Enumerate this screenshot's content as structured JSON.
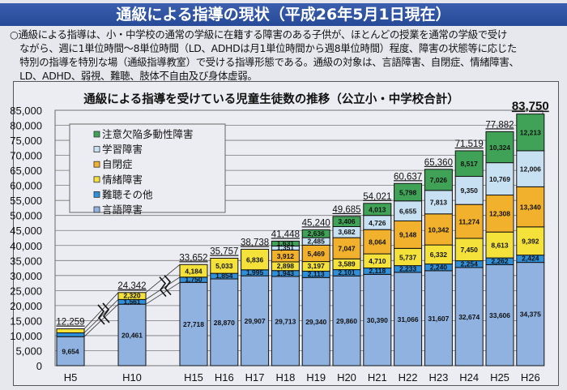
{
  "header": {
    "title": "通級による指導の現状（平成26年5月1日現在）"
  },
  "description": {
    "lines": [
      "○通級による指導は、小・中学校の通常の学級に在籍する障害のある子供が、ほとんどの授業を通常の学級で受け",
      "　ながら、週に1単位時間～8単位時間（LD、ADHDは月1単位時間から週8単位時間）程度、障害の状態等に応じた",
      "　特別の指導を特別な場（通級指導教室）で受ける指導形態である。通級の対象は、言語障害、自閉症、情緒障害、",
      "　LD、ADHD、弱視、難聴、肢体不自由及び身体虚弱。"
    ]
  },
  "chart_data": {
    "type": "bar",
    "stacked": true,
    "title": "通級による指導を受けている児童生徒数の推移（公立小・中学校合計）",
    "xlabel": "",
    "ylabel": "",
    "ylim": [
      0,
      85000
    ],
    "yticks": [
      0,
      5000,
      10000,
      15000,
      20000,
      25000,
      30000,
      35000,
      40000,
      45000,
      50000,
      55000,
      60000,
      65000,
      70000,
      75000,
      80000,
      85000
    ],
    "ytick_labels": [
      "0",
      "5,000",
      "10,000",
      "15,000",
      "20,000",
      "25,000",
      "30,000",
      "35,000",
      "40,000",
      "45,000",
      "50,000",
      "55,000",
      "60,000",
      "65,000",
      "70,000",
      "75,000",
      "80,000",
      "85,000"
    ],
    "grid": true,
    "legend_position": "top-left",
    "categories": [
      "H5",
      "H10",
      "H15",
      "H16",
      "H17",
      "H18",
      "H19",
      "H20",
      "H21",
      "H22",
      "H23",
      "H24",
      "H25",
      "H26"
    ],
    "axis_breaks_after": [
      "H5",
      "H10"
    ],
    "series": [
      {
        "name": "言語障害",
        "color": "#8fb2e0",
        "values": [
          9654,
          20461,
          27718,
          28870,
          29907,
          29713,
          29340,
          29860,
          30390,
          31066,
          31607,
          32674,
          33606,
          34375
        ],
        "labels": [
          "9,654",
          "20,461",
          "27,718",
          "28,870",
          "29,907",
          "29,713",
          "29,340",
          "29,860",
          "30,390",
          "31,066",
          "31,607",
          "32,674",
          "33,606",
          "34,375"
        ]
      },
      {
        "name": "難聴その他",
        "color": "#2f8fd8",
        "values": [
          1268,
          1561,
          1750,
          1854,
          1995,
          1943,
          2113,
          2101,
          2118,
          2233,
          2240,
          2254,
          2262,
          2424
        ],
        "labels": [
          "1,268",
          "1,561",
          "1,750",
          "1,854",
          "1,995",
          "1,943",
          "2,113",
          "2,101",
          "2,118",
          "2,233",
          "2,240",
          "2,254",
          "2,262",
          "2,424"
        ]
      },
      {
        "name": "情緒障害",
        "color": "#f4e23a",
        "values": [
          1337,
          2320,
          4184,
          5033,
          6836,
          2898,
          3197,
          3589,
          4710,
          5737,
          6332,
          7450,
          8613,
          9392
        ],
        "labels": [
          "1,337",
          "2,320",
          "4,184",
          "5,033",
          "6,836",
          "2,898",
          "3,197",
          "3,589",
          "4,710",
          "5,737",
          "6,332",
          "7,450",
          "8,613",
          "9,392"
        ]
      },
      {
        "name": "自閉症",
        "color": "#f2b12c",
        "values": [
          0,
          0,
          0,
          0,
          0,
          3912,
          5469,
          7047,
          8064,
          9148,
          10342,
          11274,
          12308,
          13340
        ],
        "labels": [
          "",
          "",
          "",
          "",
          "",
          "3,912",
          "5,469",
          "7,047",
          "8,064",
          "9,148",
          "10,342",
          "11,274",
          "12,308",
          "13,340"
        ]
      },
      {
        "name": "学習障害",
        "color": "#c7e1f3",
        "values": [
          0,
          0,
          0,
          0,
          0,
          1351,
          2485,
          3682,
          4726,
          6655,
          7813,
          9350,
          10769,
          12006
        ],
        "labels": [
          "",
          "",
          "",
          "",
          "",
          "1,351",
          "2,485",
          "3,682",
          "4,726",
          "6,655",
          "7,813",
          "9,350",
          "10,769",
          "12,006"
        ]
      },
      {
        "name": "注意欠陥多動性障害",
        "color": "#3fa257",
        "values": [
          0,
          0,
          0,
          0,
          0,
          1631,
          2636,
          3406,
          4013,
          5798,
          7026,
          8517,
          10324,
          12213
        ],
        "labels": [
          "",
          "",
          "",
          "",
          "",
          "1,631",
          "2,636",
          "3,406",
          "4,013",
          "5,798",
          "7,026",
          "8,517",
          "10,324",
          "12,213"
        ]
      }
    ],
    "totals": [
      12259,
      24342,
      33652,
      35757,
      38738,
      41448,
      45240,
      49685,
      54021,
      60637,
      65360,
      71519,
      77882,
      83750
    ],
    "total_labels": [
      "12,259",
      "24,342",
      "33,652",
      "35,757",
      "38,738",
      "41,448",
      "45,240",
      "49,685",
      "54,021",
      "60,637",
      "65,360",
      "71,519",
      "77,882",
      "83,750"
    ],
    "legend": [
      "注意欠陥多動性障害",
      "学習障害",
      "自閉症",
      "情緒障害",
      "難聴その他",
      "言語障害"
    ]
  }
}
